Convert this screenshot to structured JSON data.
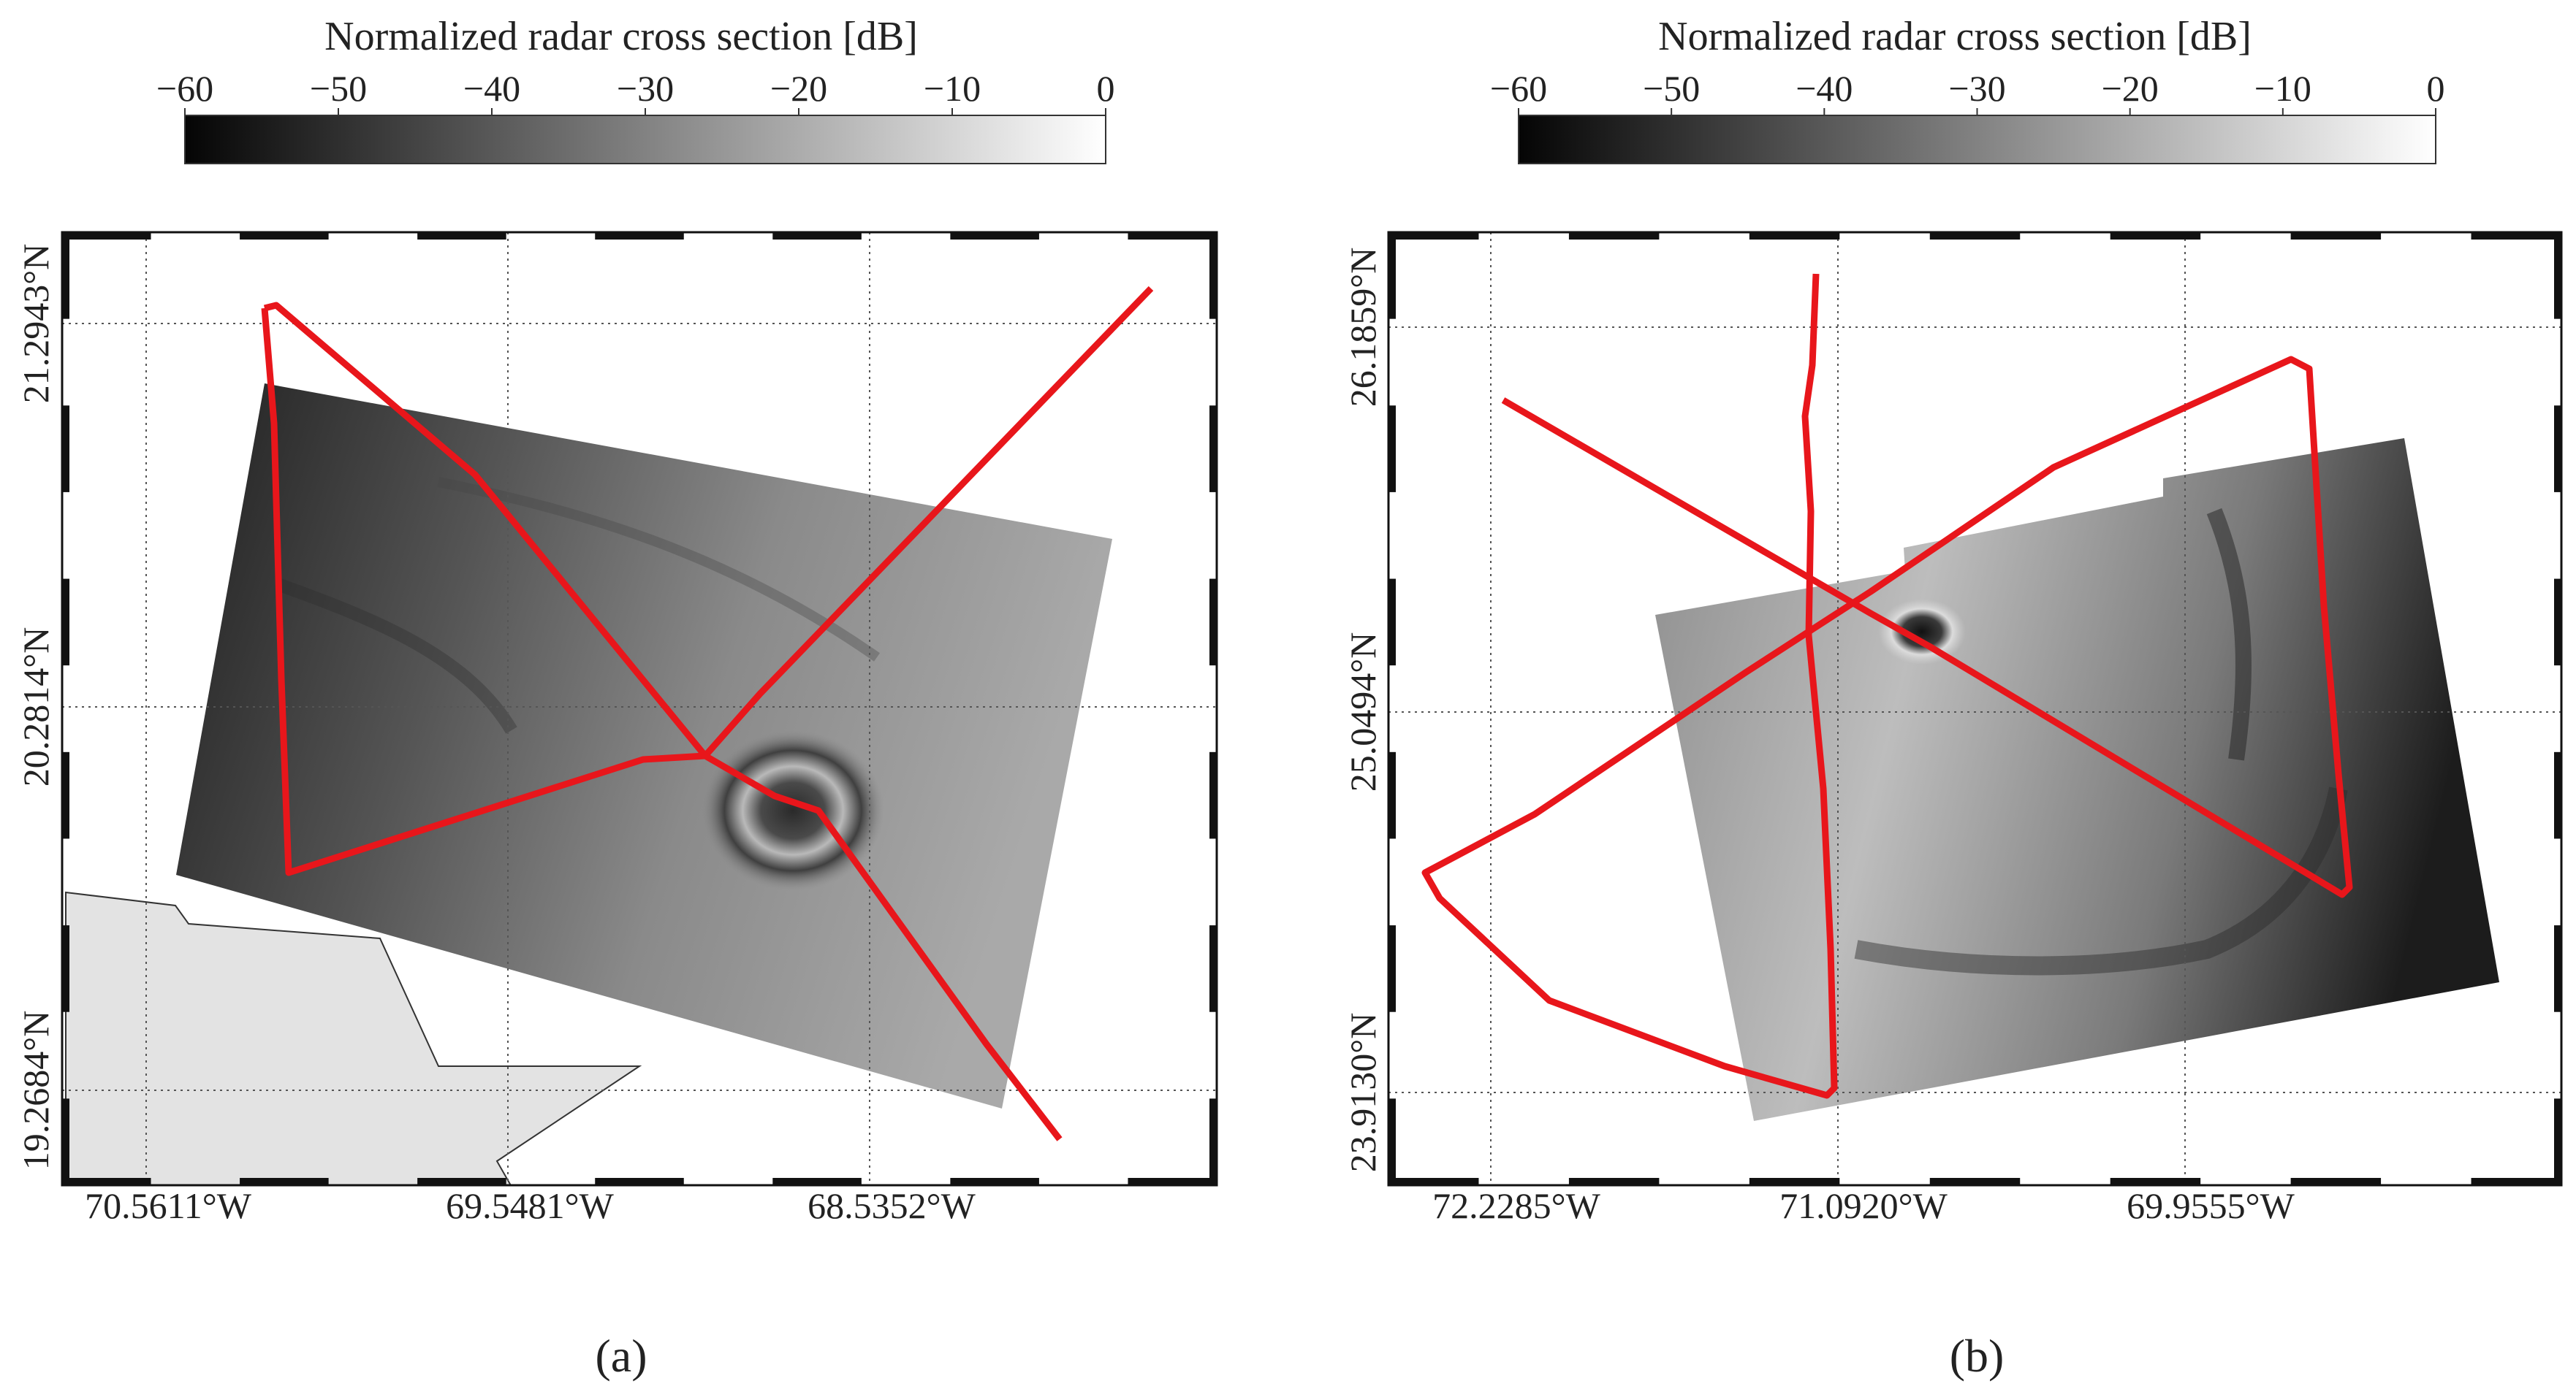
{
  "colorbar": {
    "title": "Normalized radar cross section [dB]",
    "ticks": [
      "−60",
      "−50",
      "−40",
      "−30",
      "−20",
      "−10",
      "0"
    ],
    "range_db": [
      -60,
      0
    ],
    "gradient": [
      "#050505",
      "#ffffff"
    ]
  },
  "panels": [
    {
      "panel_label": "(a)",
      "lon_labels": [
        "70.5611°W",
        "69.5481°W",
        "68.5352°W"
      ],
      "lat_labels": [
        "21.2943°N",
        "20.2814°N",
        "19.2684°N"
      ]
    },
    {
      "panel_label": "(b)",
      "lon_labels": [
        "72.2285°W",
        "71.0920°W",
        "69.9555°W"
      ],
      "lat_labels": [
        "26.1859°N",
        "25.0494°N",
        "23.9130°N"
      ]
    }
  ],
  "colors": {
    "track": "#e8161b",
    "land": "#e3e3e3",
    "frame": "#111111",
    "grid": "#555555"
  }
}
